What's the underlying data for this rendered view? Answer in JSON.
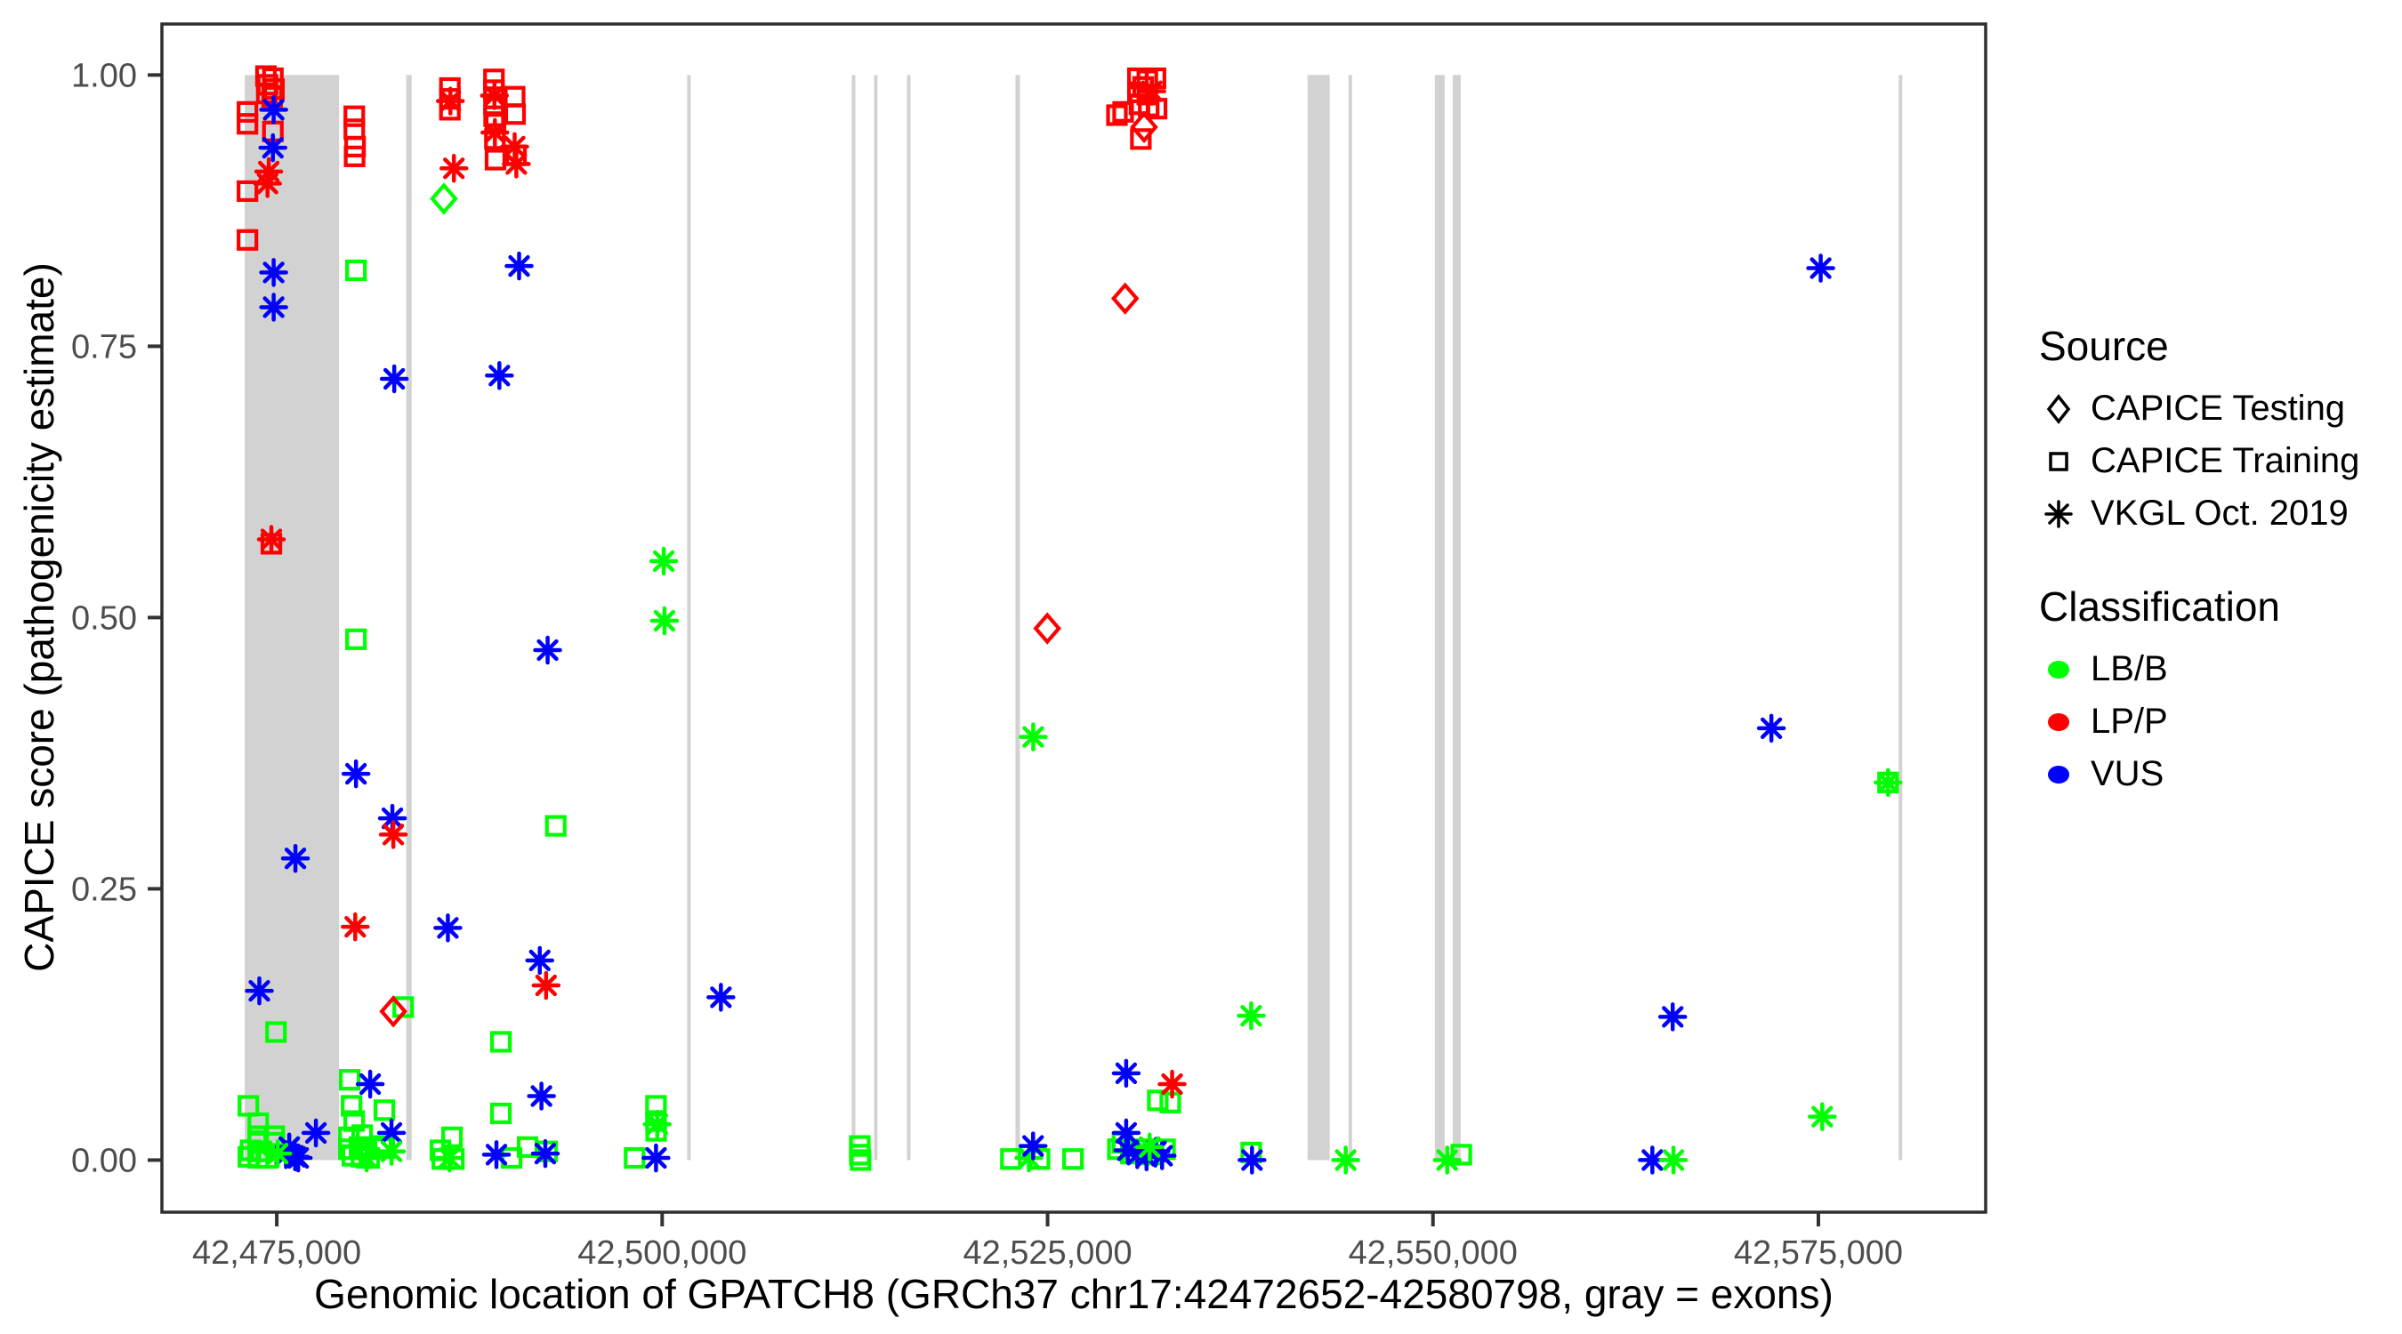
{
  "chart_data": {
    "type": "scatter",
    "xlabel": "Genomic location of GPATCH8 (GRCh37 chr17:42472652-42580798, gray = exons)",
    "ylabel": "CAPICE score (pathogenicity estimate)",
    "xlim": [
      42467550,
      42585850
    ],
    "ylim": [
      -0.048,
      1.047
    ],
    "grid": false,
    "x_ticks": [
      {
        "value": 42475000,
        "label": "42,475,000"
      },
      {
        "value": 42500000,
        "label": "42,500,000"
      },
      {
        "value": 42525000,
        "label": "42,525,000"
      },
      {
        "value": 42550000,
        "label": "42,550,000"
      },
      {
        "value": 42575000,
        "label": "42,575,000"
      }
    ],
    "y_ticks": [
      {
        "value": 0.0,
        "label": "0.00"
      },
      {
        "value": 0.25,
        "label": "0.25"
      },
      {
        "value": 0.5,
        "label": "0.50"
      },
      {
        "value": 0.75,
        "label": "0.75"
      },
      {
        "value": 1.0,
        "label": "1.00"
      }
    ],
    "exon_color": "#d2d2d2",
    "exons": [
      [
        42472920,
        42479040
      ],
      [
        42483400,
        42483750
      ],
      [
        42501620,
        42501850
      ],
      [
        42512300,
        42512530
      ],
      [
        42513740,
        42513970
      ],
      [
        42515880,
        42516110
      ],
      [
        42522920,
        42523210
      ],
      [
        42541860,
        42543300
      ],
      [
        42544520,
        42544750
      ],
      [
        42550120,
        42550760
      ],
      [
        42551280,
        42551800
      ],
      [
        42580210,
        42580440
      ]
    ],
    "classes": {
      "B": {
        "label": "LB/B",
        "color": "#00ff00"
      },
      "P": {
        "label": "LP/P",
        "color": "#ff0000"
      },
      "U": {
        "label": "VUS",
        "color": "#0000ff"
      }
    },
    "legend": {
      "source": {
        "title": "Source",
        "items": [
          {
            "label": "CAPICE Testing",
            "marker": "diamond"
          },
          {
            "label": "CAPICE Training",
            "marker": "square"
          },
          {
            "label": "VKGL Oct. 2019",
            "marker": "asterisk"
          }
        ]
      },
      "classification": {
        "title": "Classification",
        "items": [
          {
            "label": "LB/B",
            "color": "#00ff00"
          },
          {
            "label": "LP/P",
            "color": "#ff0000"
          },
          {
            "label": "VUS",
            "color": "#0000ff"
          }
        ]
      },
      "position": "right"
    },
    "series": [
      {
        "name": "CAPICE Testing",
        "marker": "diamond",
        "points": [
          [
            42482560,
            0.137,
            "P"
          ],
          [
            42485840,
            0.886,
            "B"
          ],
          [
            42524980,
            0.49,
            "P"
          ],
          [
            42530030,
            0.794,
            "P"
          ],
          [
            42531260,
            0.952,
            "P"
          ]
        ]
      },
      {
        "name": "CAPICE Training",
        "marker": "square",
        "points": [
          [
            42474300,
            0.999,
            "P"
          ],
          [
            42474750,
            0.997,
            "P"
          ],
          [
            42474400,
            0.991,
            "P"
          ],
          [
            42474820,
            0.987,
            "P"
          ],
          [
            42474350,
            0.983,
            "P"
          ],
          [
            42474700,
            0.98,
            "P"
          ],
          [
            42473100,
            0.966,
            "P"
          ],
          [
            42473100,
            0.955,
            "P"
          ],
          [
            42474750,
            0.948,
            "P"
          ],
          [
            42473100,
            0.893,
            "P"
          ],
          [
            42473100,
            0.848,
            "P"
          ],
          [
            42474650,
            0.568,
            "P"
          ],
          [
            42480030,
            0.962,
            "P"
          ],
          [
            42480030,
            0.95,
            "P"
          ],
          [
            42480080,
            0.934,
            "P"
          ],
          [
            42480050,
            0.925,
            "P"
          ],
          [
            42486230,
            0.988,
            "P"
          ],
          [
            42486230,
            0.978,
            "P"
          ],
          [
            42486230,
            0.968,
            "P"
          ],
          [
            42489090,
            0.996,
            "P"
          ],
          [
            42489090,
            0.986,
            "P"
          ],
          [
            42489090,
            0.973,
            "P"
          ],
          [
            42489100,
            0.962,
            "P"
          ],
          [
            42489190,
            0.955,
            "P"
          ],
          [
            42489150,
            0.941,
            "P"
          ],
          [
            42489190,
            0.922,
            "P"
          ],
          [
            42490430,
            0.98,
            "P"
          ],
          [
            42490460,
            0.964,
            "P"
          ],
          [
            42490520,
            0.926,
            "P"
          ],
          [
            42530860,
            0.997,
            "P"
          ],
          [
            42531470,
            0.995,
            "P"
          ],
          [
            42532000,
            0.997,
            "P"
          ],
          [
            42531200,
            0.989,
            "P"
          ],
          [
            42530860,
            0.984,
            "P"
          ],
          [
            42531470,
            0.982,
            "P"
          ],
          [
            42530960,
            0.973,
            "P"
          ],
          [
            42531560,
            0.971,
            "P"
          ],
          [
            42532070,
            0.969,
            "P"
          ],
          [
            42529500,
            0.963,
            "P"
          ],
          [
            42529900,
            0.966,
            "P"
          ],
          [
            42531050,
            0.941,
            "P"
          ],
          [
            42474950,
            0.118,
            "B"
          ],
          [
            42473160,
            0.05,
            "B"
          ],
          [
            42473800,
            0.034,
            "B"
          ],
          [
            42473800,
            0.022,
            "B"
          ],
          [
            42474840,
            0.022,
            "B"
          ],
          [
            42473800,
            0.016,
            "B"
          ],
          [
            42474840,
            0.016,
            "B"
          ],
          [
            42473300,
            0.009,
            "B"
          ],
          [
            42474000,
            0.008,
            "B"
          ],
          [
            42473160,
            0.003,
            "B"
          ],
          [
            42473800,
            0.002,
            "B"
          ],
          [
            42474380,
            0.002,
            "B"
          ],
          [
            42480140,
            0.82,
            "B"
          ],
          [
            42480140,
            0.48,
            "B"
          ],
          [
            42483200,
            0.141,
            "B"
          ],
          [
            42479730,
            0.074,
            "B"
          ],
          [
            42479850,
            0.05,
            "B"
          ],
          [
            42480020,
            0.036,
            "B"
          ],
          [
            42481980,
            0.046,
            "B"
          ],
          [
            42479680,
            0.021,
            "B"
          ],
          [
            42480540,
            0.023,
            "B"
          ],
          [
            42480370,
            0.012,
            "B"
          ],
          [
            42481810,
            0.013,
            "B"
          ],
          [
            42481980,
            0.011,
            "B"
          ],
          [
            42479680,
            0.01,
            "B"
          ],
          [
            42480710,
            0.01,
            "B"
          ],
          [
            42479900,
            0.004,
            "B"
          ],
          [
            42480500,
            0.003,
            "B"
          ],
          [
            42481000,
            0.002,
            "B"
          ],
          [
            42486370,
            0.021,
            "B"
          ],
          [
            42485620,
            0.009,
            "B"
          ],
          [
            42486490,
            0.001,
            "B"
          ],
          [
            42485740,
            0.001,
            "B"
          ],
          [
            42489540,
            0.109,
            "B"
          ],
          [
            42489540,
            0.043,
            "B"
          ],
          [
            42490230,
            0.002,
            "B"
          ],
          [
            42491270,
            0.012,
            "B"
          ],
          [
            42492540,
            0.008,
            "B"
          ],
          [
            42493100,
            0.308,
            "B"
          ],
          [
            42498210,
            0.002,
            "B"
          ],
          [
            42499600,
            0.05,
            "B"
          ],
          [
            42499600,
            0.036,
            "B"
          ],
          [
            42499610,
            0.027,
            "B"
          ],
          [
            42512820,
            0.013,
            "B"
          ],
          [
            42512820,
            0.005,
            "B"
          ],
          [
            42512870,
            0.0,
            "B"
          ],
          [
            42522620,
            0.001,
            "B"
          ],
          [
            42524480,
            0.001,
            "B"
          ],
          [
            42526650,
            0.001,
            "B"
          ],
          [
            42532150,
            0.055,
            "B"
          ],
          [
            42532960,
            0.053,
            "B"
          ],
          [
            42529560,
            0.01,
            "B"
          ],
          [
            42529860,
            0.016,
            "B"
          ],
          [
            42530400,
            0.006,
            "B"
          ],
          [
            42531210,
            0.01,
            "B"
          ],
          [
            42531820,
            0.005,
            "B"
          ],
          [
            42532620,
            0.01,
            "B"
          ],
          [
            42538210,
            0.007,
            "B"
          ],
          [
            42551840,
            0.005,
            "B"
          ],
          [
            42579520,
            0.348,
            "B"
          ]
        ]
      },
      {
        "name": "VKGL Oct. 2019",
        "marker": "asterisk",
        "points": [
          [
            42474800,
            0.968,
            "U"
          ],
          [
            42474750,
            0.933,
            "U"
          ],
          [
            42474800,
            0.818,
            "U"
          ],
          [
            42474800,
            0.786,
            "U"
          ],
          [
            42474480,
            0.911,
            "P"
          ],
          [
            42474400,
            0.9,
            "P"
          ],
          [
            42474650,
            0.572,
            "P"
          ],
          [
            42476210,
            0.278,
            "U"
          ],
          [
            42473870,
            0.156,
            "U"
          ],
          [
            42477540,
            0.025,
            "U"
          ],
          [
            42475810,
            0.012,
            "U"
          ],
          [
            42476190,
            0.003,
            "U"
          ],
          [
            42476390,
            0.002,
            "U"
          ],
          [
            42475600,
            0.005,
            "U"
          ],
          [
            42475060,
            0.006,
            "B"
          ],
          [
            42480140,
            0.356,
            "U"
          ],
          [
            42480090,
            0.215,
            "P"
          ],
          [
            42482620,
            0.72,
            "U"
          ],
          [
            42482500,
            0.315,
            "U"
          ],
          [
            42482560,
            0.3,
            "P"
          ],
          [
            42481060,
            0.07,
            "U"
          ],
          [
            42482440,
            0.025,
            "U"
          ],
          [
            42480830,
            0.002,
            "B"
          ],
          [
            42482440,
            0.008,
            "B"
          ],
          [
            42486260,
            0.976,
            "P"
          ],
          [
            42486490,
            0.914,
            "P"
          ],
          [
            42486100,
            0.214,
            "U"
          ],
          [
            42486200,
            0.002,
            "B"
          ],
          [
            42489120,
            0.981,
            "P"
          ],
          [
            42489150,
            0.947,
            "P"
          ],
          [
            42490430,
            0.934,
            "P"
          ],
          [
            42490540,
            0.918,
            "P"
          ],
          [
            42490720,
            0.824,
            "U"
          ],
          [
            42489440,
            0.723,
            "U"
          ],
          [
            42489250,
            0.005,
            "U"
          ],
          [
            42492570,
            0.47,
            "U"
          ],
          [
            42492060,
            0.184,
            "U"
          ],
          [
            42492470,
            0.161,
            "P"
          ],
          [
            42492170,
            0.059,
            "U"
          ],
          [
            42492420,
            0.006,
            "U"
          ],
          [
            42500100,
            0.552,
            "B"
          ],
          [
            42500150,
            0.497,
            "B"
          ],
          [
            42499680,
            0.033,
            "B"
          ],
          [
            42499600,
            0.002,
            "U"
          ],
          [
            42503810,
            0.15,
            "U"
          ],
          [
            42523790,
            0.002,
            "B"
          ],
          [
            42524060,
            0.013,
            "U"
          ],
          [
            42524070,
            0.39,
            "B"
          ],
          [
            42531760,
            0.985,
            "P"
          ],
          [
            42530100,
            0.08,
            "U"
          ],
          [
            42533080,
            0.07,
            "P"
          ],
          [
            42530100,
            0.025,
            "U"
          ],
          [
            42530210,
            0.009,
            "U"
          ],
          [
            42530820,
            0.005,
            "U"
          ],
          [
            42531420,
            0.003,
            "U"
          ],
          [
            42532030,
            0.008,
            "U"
          ],
          [
            42532430,
            0.004,
            "U"
          ],
          [
            42531620,
            0.012,
            "B"
          ],
          [
            42538210,
            0.133,
            "B"
          ],
          [
            42538260,
            0.0,
            "U"
          ],
          [
            42544340,
            0.0,
            "B"
          ],
          [
            42550920,
            0.0,
            "B"
          ],
          [
            42564230,
            0.0,
            "U"
          ],
          [
            42565600,
            0.0,
            "B"
          ],
          [
            42565550,
            0.132,
            "U"
          ],
          [
            42571950,
            0.398,
            "U"
          ],
          [
            42575150,
            0.822,
            "U"
          ],
          [
            42575250,
            0.04,
            "B"
          ],
          [
            42579520,
            0.348,
            "B"
          ]
        ]
      }
    ],
    "panel": {
      "border_color": "#2e2e2e",
      "tick_color": "#333333",
      "tick_label_color": "#4d4d4d"
    }
  }
}
